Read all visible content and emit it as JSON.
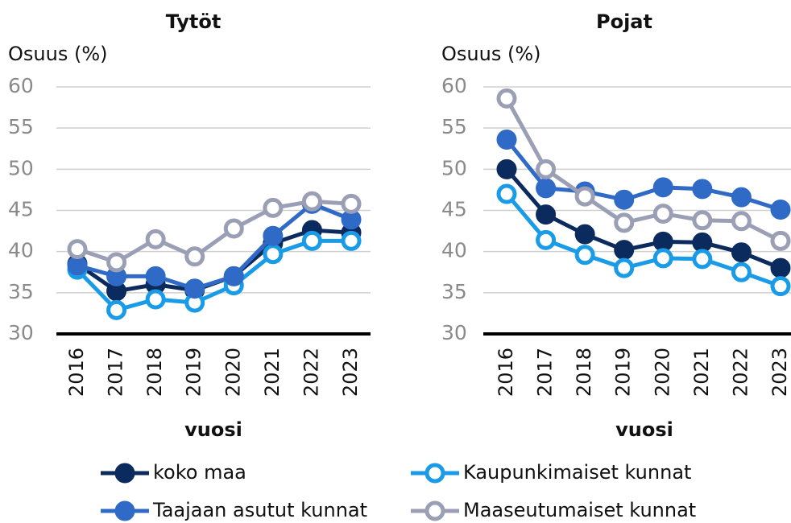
{
  "chart_data": [
    {
      "type": "line",
      "title": "Tytöt",
      "y_label": "Osuus (%)",
      "x_label": "vuosi",
      "categories": [
        "2016",
        "2017",
        "2018",
        "2019",
        "2020",
        "2021",
        "2022",
        "2023"
      ],
      "ylim": [
        30,
        60
      ],
      "yticks": [
        30,
        35,
        40,
        45,
        50,
        55,
        60
      ],
      "grid": true,
      "series": [
        {
          "name": "koko maa",
          "color": "#0b2a5e",
          "marker": "filled",
          "values": [
            38.5,
            35.2,
            36,
            35.3,
            37,
            41,
            42.6,
            42.3
          ]
        },
        {
          "name": "Kaupunkimaiset kunnat",
          "color": "#1a9be8",
          "marker": "open",
          "values": [
            37.8,
            32.9,
            34.2,
            33.8,
            35.9,
            39.7,
            41.3,
            41.3
          ]
        },
        {
          "name": "Taajaan asutut kunnat",
          "color": "#2f6bc6",
          "marker": "filled",
          "values": [
            38.3,
            37,
            37,
            35.5,
            37,
            41.9,
            45.8,
            43.9
          ]
        },
        {
          "name": "Maaseutumaiset kunnat",
          "color": "#9a9fb5",
          "marker": "open",
          "values": [
            40.3,
            38.7,
            41.5,
            39.4,
            42.8,
            45.3,
            46.1,
            45.8
          ]
        }
      ]
    },
    {
      "type": "line",
      "title": "Pojat",
      "y_label": "Osuus (%)",
      "x_label": "vuosi",
      "categories": [
        "2016",
        "2017",
        "2018",
        "2019",
        "2020",
        "2021",
        "2022",
        "2023"
      ],
      "ylim": [
        30,
        60
      ],
      "yticks": [
        30,
        35,
        40,
        45,
        50,
        55,
        60
      ],
      "grid": true,
      "series": [
        {
          "name": "koko maa",
          "color": "#0b2a5e",
          "marker": "filled",
          "values": [
            50,
            44.5,
            42.1,
            40.2,
            41.2,
            41.1,
            39.9,
            38
          ]
        },
        {
          "name": "Kaupunkimaiset kunnat",
          "color": "#1a9be8",
          "marker": "open",
          "values": [
            47,
            41.4,
            39.6,
            38,
            39.2,
            39.1,
            37.5,
            35.8
          ]
        },
        {
          "name": "Taajaan asutut kunnat",
          "color": "#2f6bc6",
          "marker": "filled",
          "values": [
            53.6,
            47.7,
            47.3,
            46.3,
            47.8,
            47.6,
            46.6,
            45.1
          ]
        },
        {
          "name": "Maaseutumaiset kunnat",
          "color": "#9a9fb5",
          "marker": "open",
          "values": [
            58.6,
            50,
            46.7,
            43.5,
            44.6,
            43.8,
            43.7,
            41.3
          ]
        }
      ]
    }
  ]
}
